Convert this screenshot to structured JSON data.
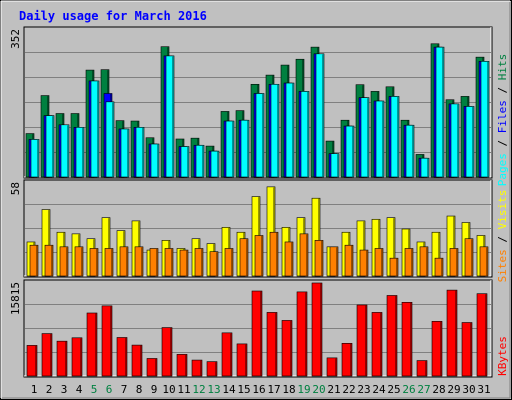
{
  "chart_data": {
    "type": "bar",
    "title": "Daily usage for March 2016",
    "days": [
      "1",
      "2",
      "3",
      "4",
      "5",
      "6",
      "7",
      "8",
      "9",
      "10",
      "11",
      "12",
      "13",
      "14",
      "15",
      "16",
      "17",
      "18",
      "19",
      "20",
      "21",
      "22",
      "23",
      "24",
      "25",
      "26",
      "27",
      "28",
      "29",
      "30",
      "31"
    ],
    "weekend_days": [
      "5",
      "6",
      "12",
      "13",
      "19",
      "20",
      "26",
      "27"
    ],
    "hits_files_pages": {
      "ymax_label": "352",
      "ymax": 352,
      "series": [
        {
          "name": "Hits",
          "color": "#008040",
          "values": [
            104,
            195,
            152,
            152,
            256,
            257,
            135,
            134,
            94,
            312,
            91,
            93,
            74,
            157,
            159,
            222,
            244,
            268,
            282,
            311,
            86,
            136,
            221,
            205,
            216,
            136,
            54,
            319,
            185,
            193,
            287
          ]
        },
        {
          "name": "Files",
          "color": "#0000ff",
          "values": [
            90,
            147,
            125,
            119,
            230,
            200,
            115,
            119,
            79,
            290,
            73,
            76,
            62,
            134,
            136,
            200,
            222,
            225,
            205,
            295,
            56,
            122,
            190,
            182,
            193,
            124,
            45,
            311,
            175,
            169,
            277
          ]
        },
        {
          "name": "Pages",
          "color": "#00ffff",
          "values": [
            90,
            147,
            125,
            119,
            230,
            180,
            115,
            119,
            79,
            290,
            73,
            76,
            62,
            134,
            136,
            200,
            222,
            225,
            205,
            295,
            56,
            122,
            190,
            182,
            193,
            124,
            45,
            311,
            175,
            169,
            277
          ]
        }
      ]
    },
    "visits_sites": {
      "ymax_label": "58",
      "ymax": 58,
      "series": [
        {
          "name": "Visits",
          "color": "#ffff00",
          "values": [
            21,
            41,
            27,
            26,
            23,
            36,
            28,
            34,
            16,
            22,
            17,
            23,
            20,
            30,
            27,
            49,
            55,
            30,
            36,
            48,
            18,
            27,
            34,
            35,
            36,
            29,
            21,
            27,
            37,
            33,
            25
          ]
        },
        {
          "name": "Sites",
          "color": "#ff8000",
          "values": [
            19,
            19,
            18,
            18,
            17,
            17,
            18,
            18,
            17,
            17,
            16,
            17,
            15,
            17,
            23,
            25,
            27,
            21,
            26,
            22,
            18,
            19,
            16,
            17,
            11,
            17,
            18,
            11,
            17,
            23,
            18
          ]
        }
      ]
    },
    "kbytes": {
      "ymax_label": "15815",
      "ymax": 15815,
      "series": [
        {
          "name": "KBytes",
          "color": "#ff0000",
          "values": [
            5150,
            7140,
            5860,
            6430,
            10600,
            11800,
            6480,
            5200,
            2950,
            8150,
            3640,
            2680,
            2420,
            7260,
            5400,
            14300,
            10700,
            9350,
            14150,
            15650,
            3050,
            5500,
            11950,
            10700,
            13550,
            12400,
            2600,
            9200,
            14450,
            9000,
            13850
          ]
        }
      ]
    }
  }
}
